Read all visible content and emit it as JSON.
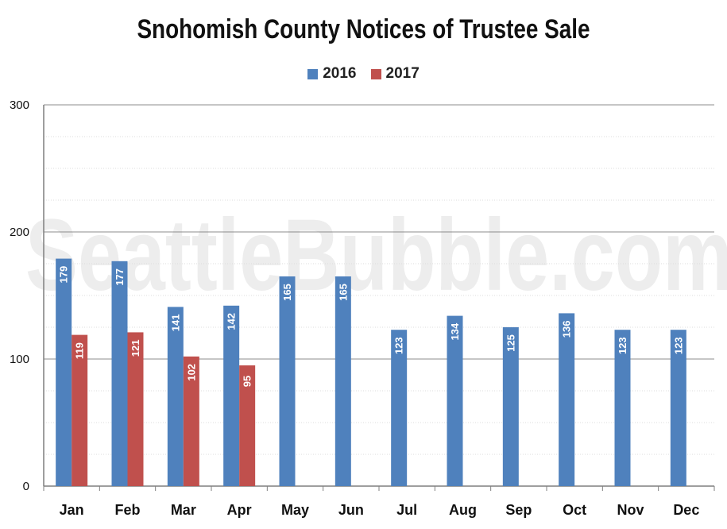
{
  "watermark": "SeattleBubble.com",
  "chart_data": {
    "type": "bar",
    "title": "Snohomish County Notices of Trustee Sale",
    "categories": [
      "Jan",
      "Feb",
      "Mar",
      "Apr",
      "May",
      "Jun",
      "Jul",
      "Aug",
      "Sep",
      "Oct",
      "Nov",
      "Dec"
    ],
    "series": [
      {
        "name": "2016",
        "color": "#4f81bd",
        "values": [
          179,
          177,
          141,
          142,
          165,
          165,
          123,
          134,
          125,
          136,
          123,
          123
        ]
      },
      {
        "name": "2017",
        "color": "#c0504d",
        "values": [
          119,
          121,
          102,
          95,
          null,
          null,
          null,
          null,
          null,
          null,
          null,
          null
        ]
      }
    ],
    "ylim": [
      0,
      300
    ],
    "yticks": [
      "0",
      "100",
      "200",
      "300"
    ],
    "grid": true,
    "legend": "top-center"
  }
}
